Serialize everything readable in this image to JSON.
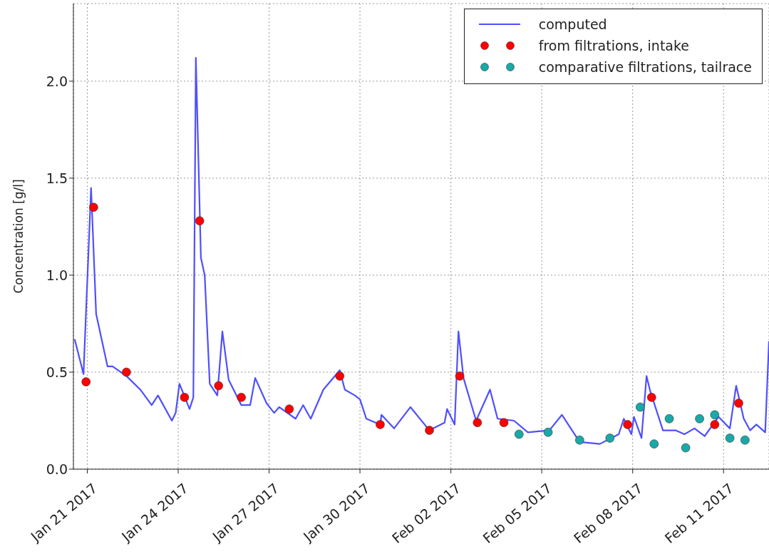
{
  "chart_data": {
    "type": "line",
    "ylabel": "Concentration [g/l]",
    "xlim": [
      "2017-01-20T13:00",
      "2017-02-12T12:00"
    ],
    "ylim": [
      0,
      2.4
    ],
    "xticks": [
      {
        "value": "2017-01-21",
        "label": "Jan 21 2017"
      },
      {
        "value": "2017-01-24",
        "label": "Jan 24 2017"
      },
      {
        "value": "2017-01-27",
        "label": "Jan 27 2017"
      },
      {
        "value": "2017-01-30",
        "label": "Jan 30 2017"
      },
      {
        "value": "2017-02-02",
        "label": "Feb 02 2017"
      },
      {
        "value": "2017-02-05",
        "label": "Feb 05 2017"
      },
      {
        "value": "2017-02-08",
        "label": "Feb 08 2017"
      },
      {
        "value": "2017-02-11",
        "label": "Feb 11 2017"
      }
    ],
    "yticks": [
      {
        "value": 0,
        "label": "0.0"
      },
      {
        "value": 0.5,
        "label": "0.5"
      },
      {
        "value": 1,
        "label": "1.0"
      },
      {
        "value": 1.5,
        "label": "1.5"
      },
      {
        "value": 2,
        "label": "2.0"
      }
    ],
    "grid": true,
    "legend": "top right",
    "series": [
      {
        "name": "computed",
        "color": "#4f4fff",
        "marker": "none",
        "line_style": "solid",
        "x": [
          "2017-01-20T14:00",
          "2017-01-20T21:00",
          "2017-01-21T03:00",
          "2017-01-21T07:00",
          "2017-01-21T16:00",
          "2017-01-21T20:00",
          "2017-01-22T07:00",
          "2017-01-22T18:00",
          "2017-01-23T03:00",
          "2017-01-23T08:00",
          "2017-01-23T19:00",
          "2017-01-23T22:00",
          "2017-01-24T01:00",
          "2017-01-24T09:00",
          "2017-01-24T12:00",
          "2017-01-24T14:00",
          "2017-01-24T18:00",
          "2017-01-24T21:00",
          "2017-01-25T01:00",
          "2017-01-25T07:00",
          "2017-01-25T11:00",
          "2017-01-25T16:00",
          "2017-01-26T02:00",
          "2017-01-26T09:00",
          "2017-01-26T13:00",
          "2017-01-26T22:00",
          "2017-01-27T04:00",
          "2017-01-27T08:00",
          "2017-01-27T21:00",
          "2017-01-28T03:00",
          "2017-01-28T09:00",
          "2017-01-28T19:00",
          "2017-01-29T08:00",
          "2017-01-29T12:00",
          "2017-01-29T20:00",
          "2017-01-30T00:00",
          "2017-01-30T05:00",
          "2017-01-30T16:00",
          "2017-01-30T17:00",
          "2017-01-31T03:00",
          "2017-01-31T16:00",
          "2017-02-01T07:00",
          "2017-02-01T19:00",
          "2017-02-01T21:00",
          "2017-02-02T03:00",
          "2017-02-02T06:00",
          "2017-02-02T10:00",
          "2017-02-02T20:00",
          "2017-02-03T07:00",
          "2017-02-03T13:00",
          "2017-02-04T02:00",
          "2017-02-04T13:00",
          "2017-02-05T06:00",
          "2017-02-05T16:00",
          "2017-02-06T06:00",
          "2017-02-06T22:00",
          "2017-02-07T13:00",
          "2017-02-07T17:00",
          "2017-02-07T23:00",
          "2017-02-08T01:00",
          "2017-02-08T07:00",
          "2017-02-08T11:00",
          "2017-02-08T14:00",
          "2017-02-09T00:00",
          "2017-02-09T10:00",
          "2017-02-09T17:00",
          "2017-02-10T01:00",
          "2017-02-10T09:00",
          "2017-02-10T20:00",
          "2017-02-11T05:00",
          "2017-02-11T10:00",
          "2017-02-11T16:00",
          "2017-02-11T21:00",
          "2017-02-12T02:00",
          "2017-02-12T09:00",
          "2017-02-12T12:00"
        ],
        "values": [
          0.67,
          0.49,
          1.45,
          0.8,
          0.53,
          0.53,
          0.48,
          0.41,
          0.33,
          0.38,
          0.25,
          0.29,
          0.44,
          0.31,
          0.37,
          2.12,
          1.09,
          1.0,
          0.44,
          0.38,
          0.71,
          0.46,
          0.33,
          0.33,
          0.47,
          0.34,
          0.29,
          0.32,
          0.26,
          0.33,
          0.26,
          0.41,
          0.51,
          0.41,
          0.38,
          0.36,
          0.26,
          0.23,
          0.28,
          0.21,
          0.32,
          0.2,
          0.24,
          0.31,
          0.23,
          0.71,
          0.47,
          0.25,
          0.41,
          0.26,
          0.25,
          0.19,
          0.2,
          0.28,
          0.14,
          0.13,
          0.18,
          0.26,
          0.18,
          0.27,
          0.16,
          0.48,
          0.4,
          0.2,
          0.2,
          0.18,
          0.21,
          0.17,
          0.27,
          0.21,
          0.43,
          0.26,
          0.2,
          0.23,
          0.19,
          0.66
        ]
      },
      {
        "name": "from filtrations, intake",
        "type": "scatter",
        "color": "#ff0000",
        "marker": "circle",
        "x": [
          "2017-01-20T23:00",
          "2017-01-21T05:00",
          "2017-01-22T07:00",
          "2017-01-24T05:00",
          "2017-01-24T17:00",
          "2017-01-25T08:00",
          "2017-01-26T02:00",
          "2017-01-27T16:00",
          "2017-01-29T08:00",
          "2017-01-30T16:00",
          "2017-02-01T07:00",
          "2017-02-02T07:00",
          "2017-02-02T21:00",
          "2017-02-03T18:00",
          "2017-02-07T20:00",
          "2017-02-08T15:00",
          "2017-02-10T17:00",
          "2017-02-11T12:00"
        ],
        "values": [
          0.45,
          1.35,
          0.5,
          0.37,
          1.28,
          0.43,
          0.37,
          0.31,
          0.48,
          0.23,
          0.2,
          0.48,
          0.24,
          0.24,
          0.23,
          0.37,
          0.23,
          0.34
        ]
      },
      {
        "name": "comparative filtrations, tailrace",
        "type": "scatter",
        "color": "#1aa8a8",
        "marker": "circle",
        "x": [
          "2017-02-04T06:00",
          "2017-02-05T05:00",
          "2017-02-06T06:00",
          "2017-02-07T06:00",
          "2017-02-08T06:00",
          "2017-02-08T17:00",
          "2017-02-09T05:00",
          "2017-02-09T18:00",
          "2017-02-10T05:00",
          "2017-02-10T17:00",
          "2017-02-11T05:00",
          "2017-02-11T17:00"
        ],
        "values": [
          0.18,
          0.19,
          0.15,
          0.16,
          0.32,
          0.13,
          0.26,
          0.11,
          0.26,
          0.28,
          0.16,
          0.15
        ]
      }
    ]
  }
}
